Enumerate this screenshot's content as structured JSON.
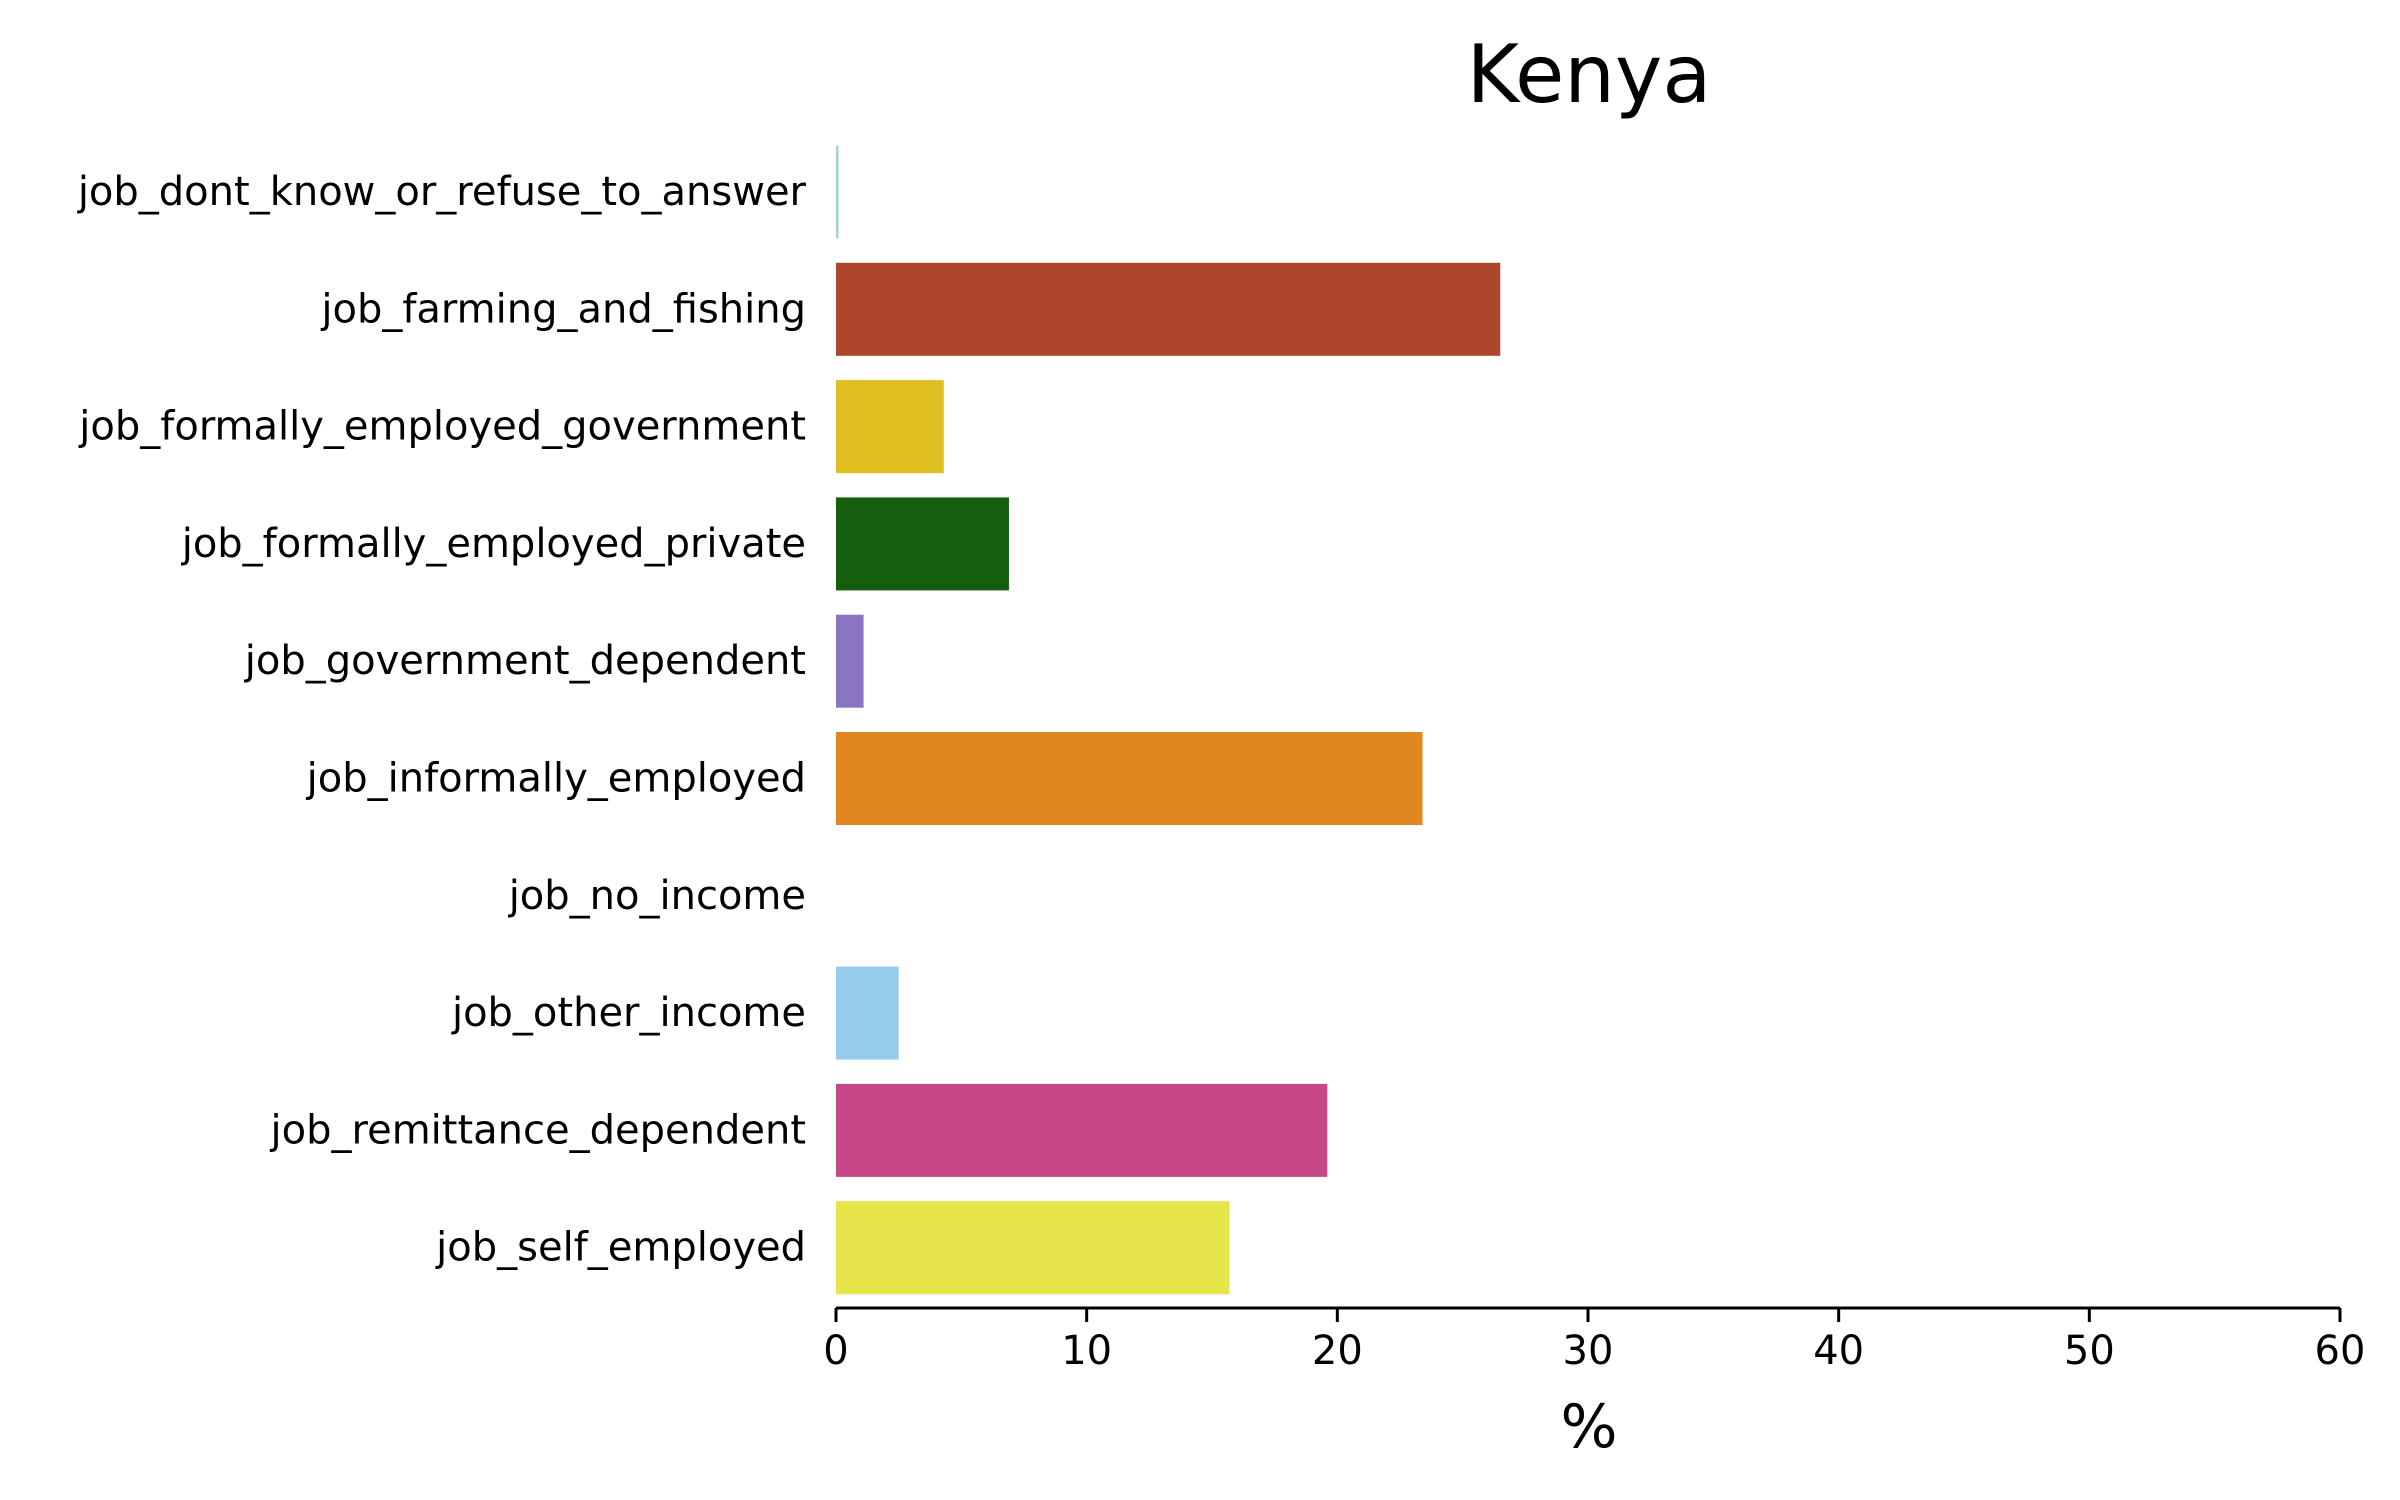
{
  "chart_data": {
    "type": "bar",
    "orientation": "horizontal",
    "title": "Kenya",
    "xlabel": "%",
    "ylabel": "",
    "xlim": [
      0,
      60
    ],
    "xticks": [
      "0",
      "10",
      "20",
      "30",
      "40",
      "50",
      "60"
    ],
    "grid": false,
    "legend": "none",
    "categories": [
      "job_dont_know_or_refuse_to_answer",
      "job_farming_and_fishing",
      "job_formally_employed_government",
      "job_formally_employed_private",
      "job_government_dependent",
      "job_informally_employed",
      "job_no_income",
      "job_other_income",
      "job_remittance_dependent",
      "job_self_employed"
    ],
    "values": [
      0.1,
      26.5,
      4.3,
      6.9,
      1.1,
      23.4,
      0.0,
      2.5,
      19.6,
      15.7
    ],
    "colors": [
      "#a6cee3",
      "#ad462b",
      "#dfbf20",
      "#135f0d",
      "#8975c1",
      "#e08820",
      "#ffffff",
      "#97cbee",
      "#c64787",
      "#e6e54a"
    ],
    "axis_color": "#000000"
  }
}
